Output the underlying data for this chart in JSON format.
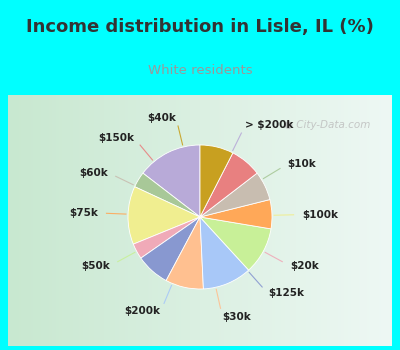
{
  "title": "Income distribution in Lisle, IL (%)",
  "subtitle": "White residents",
  "title_color": "#333333",
  "subtitle_color": "#888888",
  "watermark": "City-Data.com",
  "labels": [
    "> $200k",
    "$10k",
    "$100k",
    "$20k",
    "$125k",
    "$30k",
    "$200k",
    "$50k",
    "$75k",
    "$60k",
    "$150k",
    "$40k"
  ],
  "values": [
    14.5,
    3.5,
    13.0,
    3.5,
    7.5,
    8.5,
    11.0,
    10.5,
    6.5,
    6.5,
    7.0,
    7.5
  ],
  "colors": [
    "#b8aad8",
    "#a8c898",
    "#f0ee90",
    "#f0aab8",
    "#8898d0",
    "#ffc090",
    "#a8c8f8",
    "#c8f098",
    "#ffa858",
    "#c8bdb0",
    "#e88080",
    "#c8a020"
  ],
  "label_fontsize": 7.5,
  "title_fontsize": 13,
  "subtitle_fontsize": 9.5,
  "figsize": [
    4.0,
    3.5
  ],
  "dpi": 100,
  "startangle": 90,
  "cyan": "#00ffff",
  "chart_bg": "#e0f0e0",
  "chart_bg_right": "#f0f8f8"
}
